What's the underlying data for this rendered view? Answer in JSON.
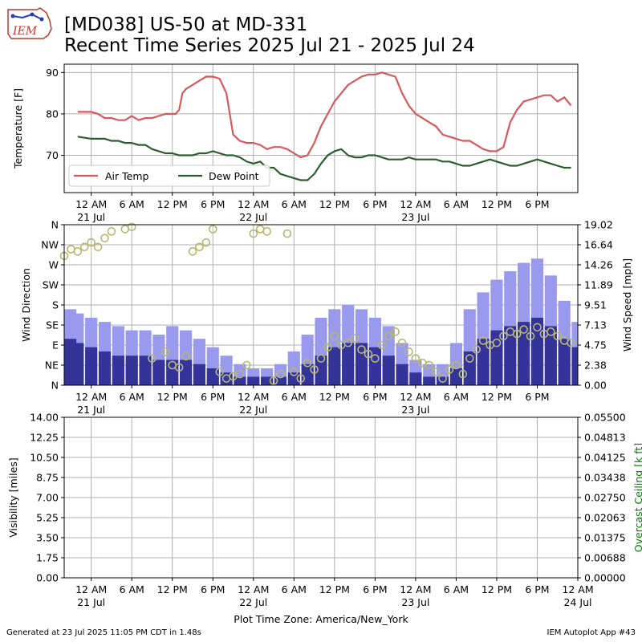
{
  "header": {
    "title_line1": "[MD038] US-50 at MD-331",
    "title_line2": "Recent Time Series 2025 Jul 21 - 2025 Jul 24",
    "logo_text": "IEM"
  },
  "footer": {
    "generated": "Generated at 23 Jul 2025 11:05 PM CDT in 1.48s",
    "app": "IEM Autoplot App #43",
    "timezone_label": "Plot Time Zone: America/New_York"
  },
  "colors": {
    "air_temp": "#d6595e",
    "dew_point": "#2e5e30",
    "gust": "#9999ee",
    "speed": "#33339a",
    "direction": "#b5b870",
    "ceiling_label": "#008000",
    "grid": "#b0b0b0"
  },
  "chart_data": [
    {
      "type": "line",
      "panel": "temperature",
      "ylabel": "Temperature [F]",
      "ylim": [
        61,
        92
      ],
      "yticks": [
        "70",
        "80",
        "90"
      ],
      "xlim_hours": [
        -4,
        72
      ],
      "x_ticks": [
        {
          "h": 0,
          "l1": "12 AM",
          "l2": "21 Jul"
        },
        {
          "h": 6,
          "l1": "6 AM",
          "l2": ""
        },
        {
          "h": 12,
          "l1": "12 PM",
          "l2": ""
        },
        {
          "h": 18,
          "l1": "6 PM",
          "l2": ""
        },
        {
          "h": 24,
          "l1": "12 AM",
          "l2": "22 Jul"
        },
        {
          "h": 30,
          "l1": "6 AM",
          "l2": ""
        },
        {
          "h": 36,
          "l1": "12 PM",
          "l2": ""
        },
        {
          "h": 42,
          "l1": "6 PM",
          "l2": ""
        },
        {
          "h": 48,
          "l1": "12 AM",
          "l2": "23 Jul"
        },
        {
          "h": 54,
          "l1": "6 AM",
          "l2": ""
        },
        {
          "h": 60,
          "l1": "12 PM",
          "l2": ""
        },
        {
          "h": 66,
          "l1": "6 PM",
          "l2": ""
        }
      ],
      "legend": {
        "position": "lower left",
        "entries": [
          "Air Temp",
          "Dew Point"
        ]
      },
      "grid": true,
      "series": [
        {
          "name": "Air Temp",
          "color": "#d6595e",
          "x": [
            -2,
            0,
            1,
            2,
            3,
            4,
            5,
            6,
            7,
            8,
            9,
            10,
            11,
            12,
            12.5,
            13,
            13.5,
            14,
            15,
            16,
            17,
            18,
            19,
            20,
            21,
            22,
            23,
            24,
            25,
            26,
            27,
            28,
            29,
            30,
            31,
            32,
            33,
            34,
            35,
            36,
            37,
            38,
            39,
            40,
            41,
            42,
            43,
            44,
            45,
            46,
            47,
            48,
            49,
            50,
            51,
            52,
            53,
            54,
            55,
            56,
            57,
            58,
            59,
            60,
            61,
            62,
            63,
            64,
            65,
            66,
            67,
            68,
            69,
            70,
            71
          ],
          "y": [
            80.5,
            80.5,
            80,
            79,
            79,
            78.5,
            78.5,
            79.5,
            78.5,
            79,
            79,
            79.5,
            80,
            80,
            80,
            81,
            85,
            86,
            87,
            88,
            89,
            89,
            88.5,
            85,
            75,
            73.5,
            73,
            73,
            72.5,
            71.5,
            72,
            72,
            71.5,
            70.5,
            69.5,
            70,
            73,
            77,
            80,
            83,
            85,
            87,
            88,
            89,
            89.5,
            89.5,
            90,
            89.5,
            89,
            85,
            82,
            80,
            79,
            78,
            77,
            75,
            74.5,
            74,
            73.5,
            73.5,
            72.5,
            71.5,
            71,
            71,
            72,
            78,
            81,
            83,
            83.5,
            84,
            84.5,
            84.5,
            83,
            84,
            82
          ]
        },
        {
          "name": "Dew Point",
          "color": "#2e5e30",
          "x": [
            -2,
            0,
            1,
            2,
            3,
            4,
            5,
            6,
            7,
            8,
            9,
            10,
            11,
            12,
            13,
            14,
            15,
            16,
            17,
            18,
            19,
            20,
            21,
            22,
            23,
            24,
            25,
            26,
            27,
            28,
            29,
            30,
            31,
            32,
            33,
            34,
            35,
            36,
            37,
            38,
            39,
            40,
            41,
            42,
            43,
            44,
            45,
            46,
            47,
            48,
            49,
            50,
            51,
            52,
            53,
            54,
            55,
            56,
            57,
            58,
            59,
            60,
            61,
            62,
            63,
            64,
            65,
            66,
            67,
            68,
            69,
            70,
            71
          ],
          "y": [
            74.5,
            74,
            74,
            74,
            73.5,
            73.5,
            73,
            73,
            72.5,
            72.5,
            71.5,
            71,
            70.5,
            70.5,
            70,
            70,
            70,
            70.5,
            70.5,
            71,
            70.5,
            70,
            70,
            69.5,
            68.5,
            68,
            68.5,
            67,
            67,
            65.5,
            65,
            64.5,
            64,
            64,
            65.5,
            68,
            70,
            71,
            71.5,
            70,
            69.5,
            69.5,
            70,
            70,
            69.5,
            69,
            69,
            69,
            69.5,
            69,
            69,
            69,
            69,
            68.5,
            68.5,
            68,
            67.5,
            67.5,
            68,
            68.5,
            69,
            68.5,
            68,
            67.5,
            67.5,
            68,
            68.5,
            69,
            68.5,
            68,
            67.5,
            67,
            67
          ]
        }
      ]
    },
    {
      "type": "bar",
      "panel": "wind",
      "ylabel": "Wind Direction",
      "y2label": "Wind Speed [mph]",
      "direction_ticks": [
        "N",
        "NE",
        "E",
        "SE",
        "S",
        "SW",
        "W",
        "NW",
        "N"
      ],
      "speed_ticks": [
        "0.00",
        "2.38",
        "4.75",
        "7.13",
        "9.51",
        "11.89",
        "14.26",
        "16.64",
        "19.02"
      ],
      "speed_ylim": [
        0,
        19.02
      ],
      "xlim_hours": [
        -4,
        72
      ],
      "grid": true,
      "series": [
        {
          "name": "Gust",
          "color": "#9999ee",
          "x": [
            -4,
            -2,
            0,
            2,
            4,
            6,
            8,
            10,
            12,
            14,
            16,
            18,
            20,
            22,
            24,
            26,
            28,
            30,
            32,
            34,
            36,
            38,
            40,
            42,
            44,
            46,
            48,
            50,
            52,
            54,
            56,
            58,
            60,
            62,
            64,
            66,
            68,
            70,
            72
          ],
          "values": [
            9,
            8.5,
            8,
            7.5,
            7,
            6.5,
            6.5,
            6,
            7,
            6.5,
            5.5,
            4.5,
            3.5,
            2.5,
            2,
            2,
            2.5,
            4,
            6,
            8,
            9,
            9.5,
            9,
            8,
            7,
            5,
            3,
            2.5,
            2.5,
            5,
            9,
            11,
            12.5,
            13.5,
            14.5,
            15,
            13,
            10,
            7.5
          ]
        },
        {
          "name": "Speed",
          "color": "#33339a",
          "x": [
            -4,
            -2,
            0,
            2,
            4,
            6,
            8,
            10,
            12,
            14,
            16,
            18,
            20,
            22,
            24,
            26,
            28,
            30,
            32,
            34,
            36,
            38,
            40,
            42,
            44,
            46,
            48,
            50,
            52,
            54,
            56,
            58,
            60,
            62,
            64,
            66,
            68,
            70,
            72
          ],
          "values": [
            5.5,
            5,
            4.5,
            4,
            3.5,
            3.5,
            3.5,
            3,
            3,
            3,
            2.5,
            2,
            1.5,
            1,
            1,
            1,
            1,
            1.5,
            2.5,
            3.5,
            4.5,
            5,
            5,
            4.5,
            3.5,
            2.5,
            1.5,
            1,
            1,
            2,
            4,
            5.5,
            6.5,
            7,
            7.5,
            8,
            7,
            5.5,
            4.5
          ]
        },
        {
          "name": "Direction",
          "color": "#b5b870",
          "x": [
            -4,
            -3,
            -2,
            -1,
            0,
            1,
            2,
            3,
            5,
            6,
            9,
            11,
            12,
            13,
            14,
            15,
            16,
            17,
            18,
            19,
            20,
            21,
            22,
            23,
            24,
            25,
            26,
            27,
            28,
            29,
            30,
            31,
            32,
            33,
            34,
            35,
            36,
            37,
            38,
            39,
            40,
            41,
            42,
            43,
            44,
            45,
            46,
            47,
            48,
            49,
            50,
            51,
            52,
            53,
            54,
            55,
            56,
            57,
            58,
            59,
            60,
            61,
            62,
            63,
            64,
            65,
            66,
            67,
            68,
            69,
            70,
            71
          ],
          "values": [
            290,
            305,
            300,
            310,
            320,
            310,
            330,
            345,
            350,
            355,
            60,
            75,
            45,
            40,
            65,
            300,
            310,
            320,
            350,
            30,
            15,
            20,
            25,
            45,
            340,
            350,
            345,
            10,
            25,
            340,
            30,
            15,
            50,
            35,
            60,
            85,
            110,
            90,
            95,
            105,
            80,
            70,
            60,
            90,
            110,
            120,
            95,
            75,
            60,
            50,
            45,
            30,
            15,
            35,
            45,
            25,
            60,
            80,
            100,
            90,
            95,
            110,
            120,
            115,
            125,
            110,
            130,
            115,
            120,
            110,
            100,
            95
          ]
        }
      ]
    },
    {
      "type": "line",
      "panel": "visibility",
      "ylabel": "Visibility [miles]",
      "y2label": "Overcast Ceiling [k ft]",
      "yticks": [
        "0.00",
        "1.75",
        "3.50",
        "5.25",
        "7.00",
        "8.75",
        "10.50",
        "12.25",
        "14.00"
      ],
      "y2ticks": [
        "0.00000",
        "0.00688",
        "0.01375",
        "0.02063",
        "0.02750",
        "0.03438",
        "0.04125",
        "0.04813",
        "0.05500"
      ],
      "ylim": [
        0,
        14
      ],
      "y2lim": [
        0,
        0.055
      ],
      "xlim_hours": [
        -4,
        72
      ],
      "x_ticks": [
        {
          "h": 0,
          "l1": "12 AM",
          "l2": "21 Jul"
        },
        {
          "h": 6,
          "l1": "6 AM",
          "l2": ""
        },
        {
          "h": 12,
          "l1": "12 PM",
          "l2": ""
        },
        {
          "h": 18,
          "l1": "6 PM",
          "l2": ""
        },
        {
          "h": 24,
          "l1": "12 AM",
          "l2": "22 Jul"
        },
        {
          "h": 30,
          "l1": "6 AM",
          "l2": ""
        },
        {
          "h": 36,
          "l1": "12 PM",
          "l2": ""
        },
        {
          "h": 42,
          "l1": "6 PM",
          "l2": ""
        },
        {
          "h": 48,
          "l1": "12 AM",
          "l2": "23 Jul"
        },
        {
          "h": 54,
          "l1": "6 AM",
          "l2": ""
        },
        {
          "h": 60,
          "l1": "12 PM",
          "l2": ""
        },
        {
          "h": 66,
          "l1": "6 PM",
          "l2": ""
        },
        {
          "h": 72,
          "l1": "12 AM",
          "l2": "24 Jul"
        }
      ],
      "grid": true,
      "series": []
    }
  ]
}
